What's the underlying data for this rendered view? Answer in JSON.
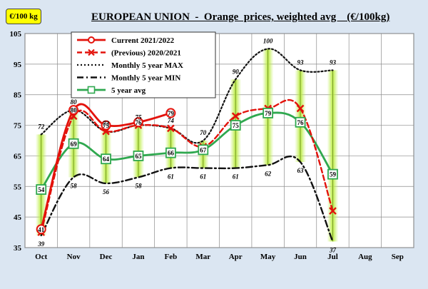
{
  "unit_badge": "€/100 kg",
  "chart_data": {
    "type": "line",
    "title": "EUROPEAN UNION  -  Orange  prices, weighted avg    (€/100kg)",
    "categories": [
      "Oct",
      "Nov",
      "Dec",
      "Jan",
      "Feb",
      "Mar",
      "Apr",
      "May",
      "Jun",
      "Jul",
      "Aug",
      "Sep"
    ],
    "ylim": [
      35,
      105
    ],
    "yticks": [
      35,
      45,
      55,
      65,
      75,
      85,
      95,
      105
    ],
    "grid": true,
    "legend_position": "top-left",
    "series": [
      {
        "name": "Current 2021/2022",
        "color": "#e3120b",
        "style": "solid",
        "values": [
          41,
          80,
          75,
          76,
          79,
          null,
          null,
          null,
          null,
          null,
          null,
          null
        ],
        "labels": [
          "41",
          "80",
          "75",
          "76",
          "79",
          null,
          null,
          null,
          null,
          null,
          null,
          null
        ]
      },
      {
        "name": "(Previous)  2020/2021",
        "color": "#e3120b",
        "style": "dashed",
        "values": [
          40,
          78,
          73,
          75,
          74,
          68,
          78,
          80.5,
          80.5,
          47,
          null,
          null
        ],
        "labels": [
          null,
          null,
          null,
          null,
          null,
          null,
          null,
          null,
          null,
          null,
          null,
          null
        ]
      },
      {
        "name": "Monthly 5 year MAX",
        "color": "#111111",
        "style": "dotted",
        "values": [
          72,
          80,
          73,
          75,
          74,
          70,
          90,
          100,
          93,
          93,
          null,
          null
        ],
        "labels": [
          "72",
          "80",
          "73",
          "75",
          "74",
          "70",
          "90",
          "100",
          "93",
          "93",
          null,
          null
        ]
      },
      {
        "name": "Monthly 5 year MIN",
        "color": "#111111",
        "style": "dashdot",
        "values": [
          39,
          58,
          56,
          58,
          61,
          61,
          61,
          62,
          63,
          37,
          null,
          null
        ],
        "labels": [
          "39",
          "58",
          "56",
          "58",
          "61",
          "61",
          "61",
          "62",
          "63",
          "37",
          null,
          null
        ]
      },
      {
        "name": "5 year avg",
        "color": "#2fa84f",
        "style": "solid",
        "values": [
          54,
          69,
          64,
          65,
          66,
          67,
          75,
          79,
          76,
          59,
          null,
          null
        ],
        "labels": [
          "54",
          "69",
          "64",
          "65",
          "66",
          "67",
          "75",
          "79",
          "76",
          "59",
          null,
          null
        ]
      }
    ]
  }
}
